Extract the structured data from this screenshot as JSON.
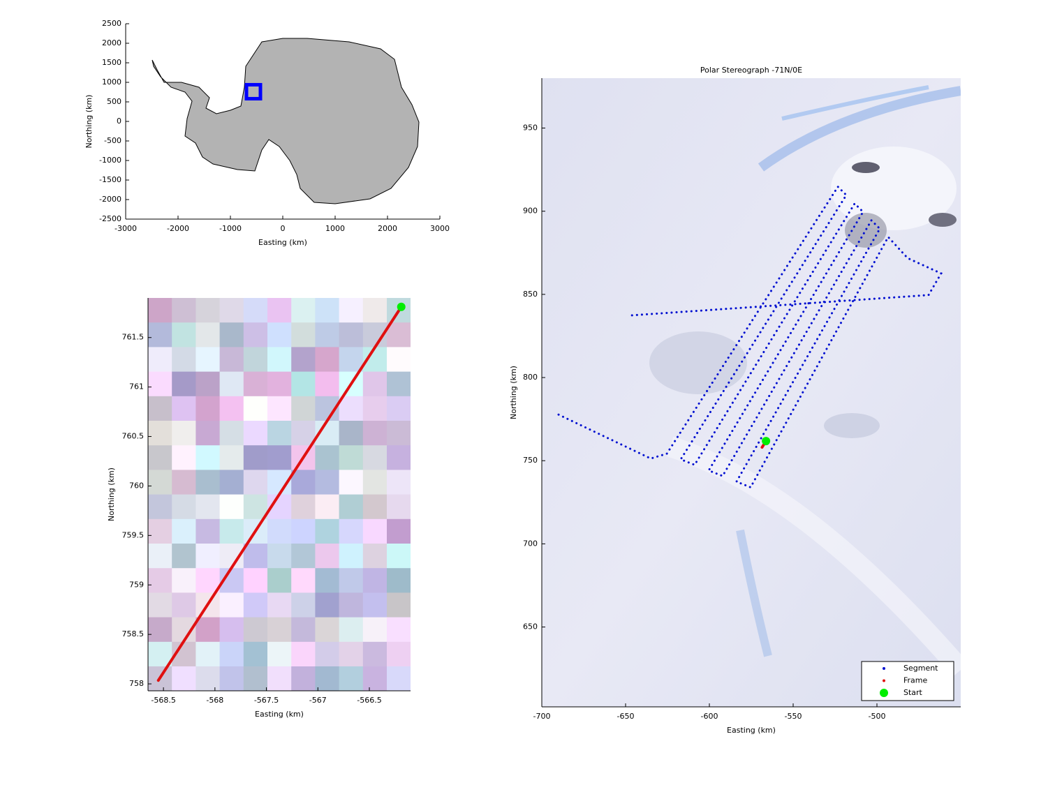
{
  "chart_data": [
    {
      "type": "map",
      "xlabel": "Easting (km)",
      "ylabel": "Northing (km)",
      "xlim": [
        -3000,
        3000
      ],
      "ylim": [
        -2500,
        2500
      ],
      "xticks": [
        -3000,
        -2000,
        -1000,
        0,
        1000,
        2000,
        3000
      ],
      "yticks": [
        -2500,
        -2000,
        -1500,
        -1000,
        -500,
        0,
        500,
        1000,
        1500,
        2000,
        2500
      ],
      "series": [
        {
          "color": "#0000ff",
          "marker": "square",
          "x": [
            -560
          ],
          "values": [
            760
          ]
        }
      ]
    },
    {
      "type": "map",
      "xlabel": "Easting (km)",
      "ylabel": "Northing (km)",
      "xlim": [
        -568.65,
        -566.1
      ],
      "ylim": [
        757.93,
        761.9
      ],
      "xticks": [
        -568.5,
        -568,
        -567.5,
        -567,
        -566.5
      ],
      "yticks": [
        758,
        758.5,
        759,
        759.5,
        760,
        760.5,
        761,
        761.5
      ],
      "series": [
        {
          "color": "#e01010",
          "linestyle": "solid",
          "x": [
            -568.55,
            -566.19
          ],
          "values": [
            758.035,
            761.81
          ]
        },
        {
          "color": "#00ee00",
          "marker": "circle",
          "x": [
            -566.19
          ],
          "values": [
            761.81
          ]
        }
      ]
    },
    {
      "type": "map",
      "title": "Polar Stereograph -71N/0E",
      "xlabel": "Easting (km)",
      "ylabel": "Northing (km)",
      "xlim": [
        -700,
        -450
      ],
      "ylim": [
        602,
        980
      ],
      "xticks": [
        -700,
        -650,
        -600,
        -550,
        -500
      ],
      "yticks": [
        650,
        700,
        750,
        800,
        850,
        900,
        950
      ],
      "legend": "southeast",
      "series": [
        {
          "name": "Segment",
          "color": "#0010d0",
          "linestyle": "dotted",
          "x": [
            -690,
            -635,
            -625.4,
            -523.3,
            -518.3,
            -617.1,
            -608.8,
            -513.3,
            -508.3,
            -600.4,
            -592.1,
            -503.3,
            -498.3,
            -583.8,
            -575.4,
            -493.3,
            -481.7,
            -461.7,
            -469.2,
            -646.3
          ],
          "values": [
            777.7,
            751.3,
            754.2,
            914.7,
            909.7,
            750.8,
            747.5,
            904.6,
            899.6,
            744.1,
            740.8,
            894.5,
            889.5,
            737.4,
            734.0,
            884.5,
            871.8,
            862.6,
            849.6,
            837.4
          ]
        },
        {
          "name": "Frame",
          "color": "#e01010",
          "linestyle": "solid",
          "x": [
            -568.55,
            -566.19
          ],
          "values": [
            758.035,
            761.81
          ]
        },
        {
          "name": "Start",
          "color": "#00ee00",
          "marker": "circle",
          "x": [
            -566.19
          ],
          "values": [
            761.81
          ]
        }
      ]
    }
  ]
}
